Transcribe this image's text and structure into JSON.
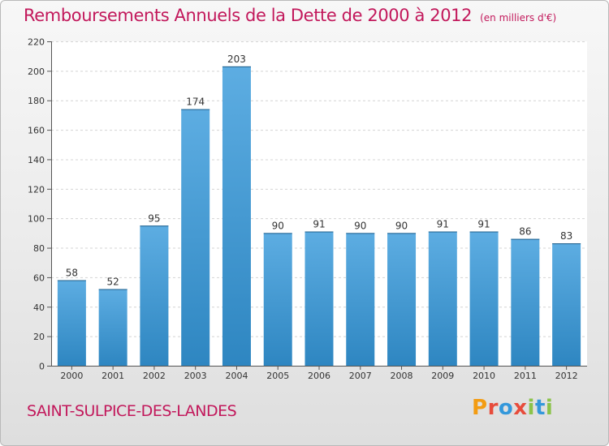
{
  "title": "Remboursements Annuels de la Dette de 2000 à 2012",
  "unit": "(en milliers d'€)",
  "commune": "SAINT-SULPICE-DES-LANDES",
  "logo": {
    "text": "Proxiti",
    "colors": [
      "#f39c12",
      "#e74c3c",
      "#3498db",
      "#e74c3c",
      "#8bc34a",
      "#3498db",
      "#8bc34a"
    ]
  },
  "colors": {
    "bar_light": "#5dade2",
    "bar_dark": "#2e86c1",
    "title": "#c2185b"
  },
  "chart_data": {
    "type": "bar",
    "categories": [
      "2000",
      "2001",
      "2002",
      "2003",
      "2004",
      "2005",
      "2006",
      "2007",
      "2008",
      "2009",
      "2010",
      "2011",
      "2012"
    ],
    "values": [
      58,
      52,
      95,
      174,
      203,
      90,
      91,
      90,
      90,
      91,
      91,
      86,
      83
    ],
    "ylim": [
      0,
      220
    ],
    "yticks": [
      0,
      20,
      40,
      60,
      80,
      100,
      120,
      140,
      160,
      180,
      200,
      220
    ],
    "grid": true,
    "xlabel": "",
    "ylabel": ""
  }
}
